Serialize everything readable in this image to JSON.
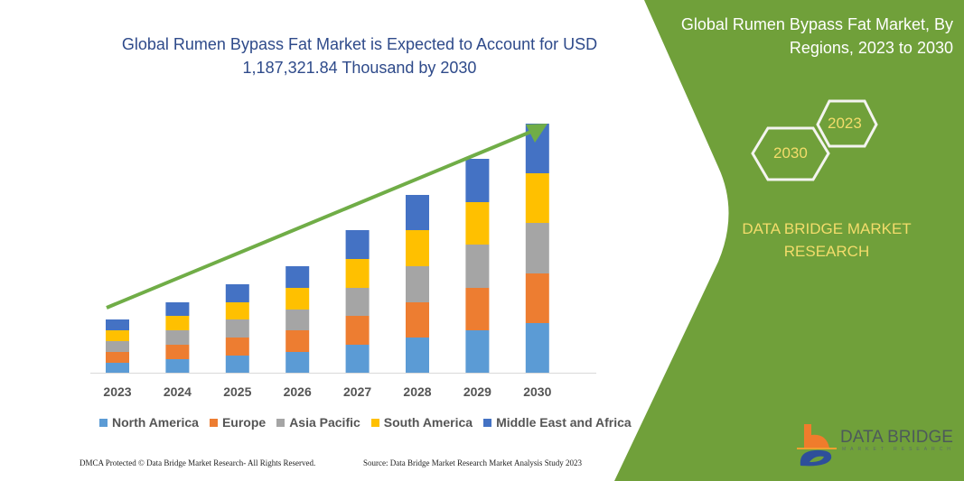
{
  "header": {
    "title_line1": "Global Rumen Bypass Fat Market is Expected to Account for USD",
    "title_line2": "1,187,321.84 Thousand by 2030"
  },
  "side_panel": {
    "title_line1": "Global Rumen Bypass Fat Market, By",
    "title_line2": "Regions, 2023 to 2030",
    "hex_start": "2023",
    "hex_end": "2030",
    "brand_line1": "DATA BRIDGE MARKET",
    "brand_line2": "RESEARCH",
    "background_color": "#70a03a"
  },
  "logo": {
    "text": "DATA BRIDGE",
    "subtext": "MARKET RESEARCH"
  },
  "footer": {
    "left": "DMCA Protected © Data Bridge Market Research-  All Rights Reserved.",
    "right": "Source: Data Bridge Market Research  Market Analysis Study 2023"
  },
  "chart_data": {
    "type": "bar",
    "stacked": true,
    "categories": [
      "2023",
      "2024",
      "2025",
      "2026",
      "2027",
      "2028",
      "2029",
      "2030"
    ],
    "series": [
      {
        "name": "North America",
        "color": "#5b9bd5",
        "values": [
          11,
          15,
          19,
          23,
          31,
          39,
          47,
          55
        ]
      },
      {
        "name": "Europe",
        "color": "#ed7d31",
        "values": [
          12,
          16,
          20,
          24,
          32,
          39,
          47,
          55
        ]
      },
      {
        "name": "Asia Pacific",
        "color": "#a5a5a5",
        "values": [
          12,
          16,
          20,
          23,
          31,
          40,
          48,
          56
        ]
      },
      {
        "name": "South America",
        "color": "#ffc000",
        "values": [
          12,
          16,
          19,
          24,
          32,
          40,
          47,
          55
        ]
      },
      {
        "name": "Middle East and Africa",
        "color": "#4472c4",
        "values": [
          12,
          15,
          20,
          24,
          32,
          39,
          48,
          55
        ]
      }
    ],
    "trend_arrow_color": "#70ad47",
    "legend_position": "bottom",
    "y_axis_shown": false,
    "grid": false
  }
}
